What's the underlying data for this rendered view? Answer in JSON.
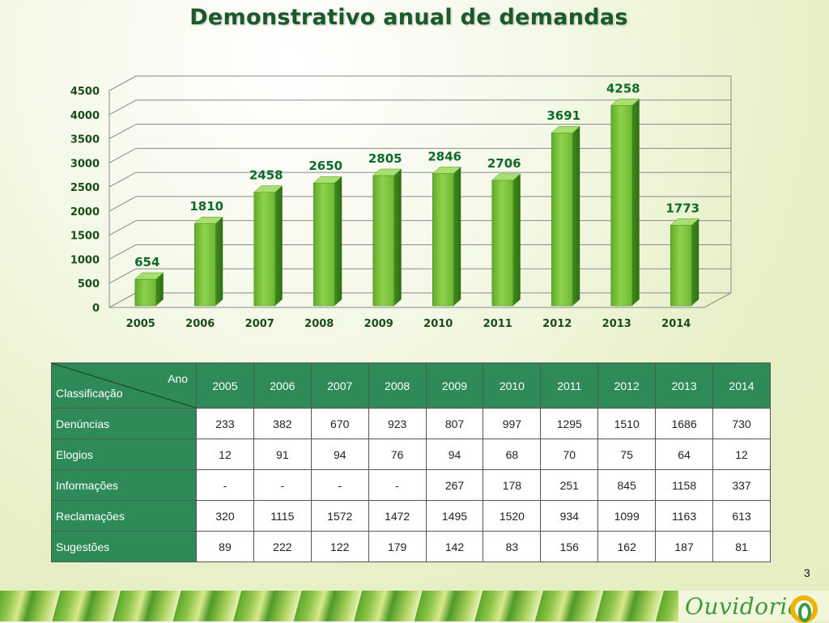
{
  "title": "Demonstrativo anual de demandas",
  "page_number": "3",
  "logo_text": "Ouvidoria",
  "colors": {
    "bar": "#7ec93f",
    "label": "#0d6b2a",
    "axis_text": "#1a4d1a",
    "table_header": "#2e8b57"
  },
  "chart_data": {
    "type": "bar",
    "categories": [
      "2005",
      "2006",
      "2007",
      "2008",
      "2009",
      "2010",
      "2011",
      "2012",
      "2013",
      "2014"
    ],
    "values": [
      654,
      1810,
      2458,
      2650,
      2805,
      2846,
      2706,
      3691,
      4258,
      1773
    ],
    "ylim": [
      0,
      4500
    ],
    "yticks": [
      0,
      500,
      1000,
      1500,
      2000,
      2500,
      3000,
      3500,
      4000,
      4500
    ],
    "grid": true,
    "title": "",
    "xlabel": "",
    "ylabel": ""
  },
  "table": {
    "corner_top": "Ano",
    "corner_bottom": "Classificação",
    "years": [
      "2005",
      "2006",
      "2007",
      "2008",
      "2009",
      "2010",
      "2011",
      "2012",
      "2013",
      "2014"
    ],
    "rows": [
      {
        "label": "Denúncias",
        "values": [
          "233",
          "382",
          "670",
          "923",
          "807",
          "997",
          "1295",
          "1510",
          "1686",
          "730"
        ]
      },
      {
        "label": "Elogios",
        "values": [
          "12",
          "91",
          "94",
          "76",
          "94",
          "68",
          "70",
          "75",
          "64",
          "12"
        ]
      },
      {
        "label": "Informações",
        "values": [
          "-",
          "-",
          "-",
          "-",
          "267",
          "178",
          "251",
          "845",
          "1158",
          "337"
        ]
      },
      {
        "label": "Reclamações",
        "values": [
          "320",
          "1115",
          "1572",
          "1472",
          "1495",
          "1520",
          "934",
          "1099",
          "1163",
          "613"
        ]
      },
      {
        "label": "Sugestões",
        "values": [
          "89",
          "222",
          "122",
          "179",
          "142",
          "83",
          "156",
          "162",
          "187",
          "81"
        ]
      }
    ]
  }
}
